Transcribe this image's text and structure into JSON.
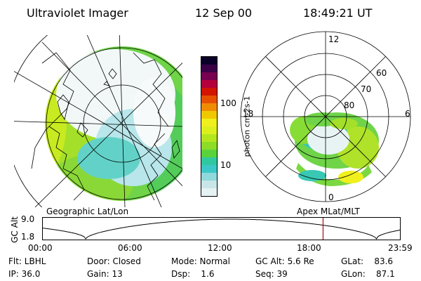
{
  "header": {
    "title": "Ultraviolet Imager",
    "date": "12 Sep 00",
    "time": "18:49:21 UT"
  },
  "colorbar": {
    "unit_label": "photon cm-2s-1",
    "ticks": [
      "100",
      "10"
    ],
    "colors": [
      "#e6f2f2",
      "#c8e6e8",
      "#8fd8dc",
      "#3cc8c8",
      "#30c8a0",
      "#5ad23c",
      "#8cdc28",
      "#b4e61e",
      "#dcf01e",
      "#f0f01e",
      "#f0c800",
      "#f08c00",
      "#e65000",
      "#d21400",
      "#b4003c",
      "#780050",
      "#3c0046",
      "#0a0028"
    ]
  },
  "left_map": {
    "caption": "Geographic Lat/Lon"
  },
  "right_map": {
    "caption": "Apex MLat/MLT",
    "hour_labels": [
      "12",
      "18",
      "6",
      "0"
    ],
    "lat_labels": [
      "60",
      "70",
      "80"
    ]
  },
  "altitude_plot": {
    "ylabel": "GC Alt",
    "ymax": "9.0",
    "ymin": "1.8",
    "xticks": [
      "00:00",
      "06:00",
      "12:00",
      "18:00",
      "23:59"
    ],
    "marker_hour": 18.82
  },
  "info": {
    "filter": "Flt: LBHL",
    "ip": "IP: 36.0",
    "door": "Door: Closed",
    "gain": "Gain: 13",
    "mode": "Mode: Normal",
    "dsp": "Dsp:    1.6",
    "gc_alt": "GC Alt: 5.6 Re",
    "seq": "Seq: 39",
    "glat": "GLat:    83.6",
    "glon": "GLon:    87.1"
  }
}
